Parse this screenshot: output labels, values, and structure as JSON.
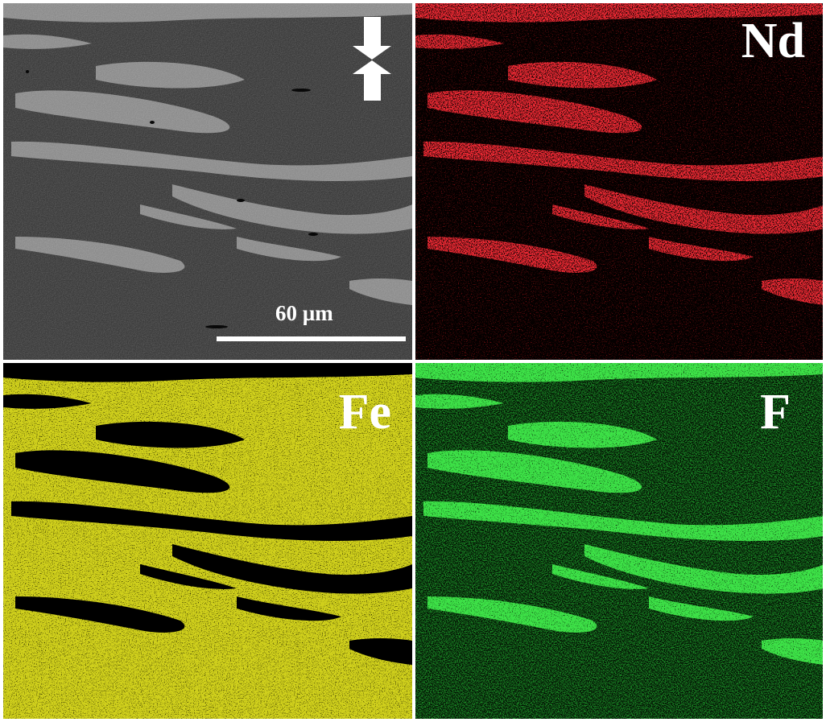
{
  "panels": {
    "sem": {
      "scale_bar_label": "60 µm",
      "icon": "compression-arrows-icon"
    },
    "nd": {
      "label": "Nd",
      "color": "#d8202a"
    },
    "fe": {
      "label": "Fe",
      "color": "#d8d820"
    },
    "f": {
      "label": "F",
      "color": "#2ec832"
    }
  }
}
